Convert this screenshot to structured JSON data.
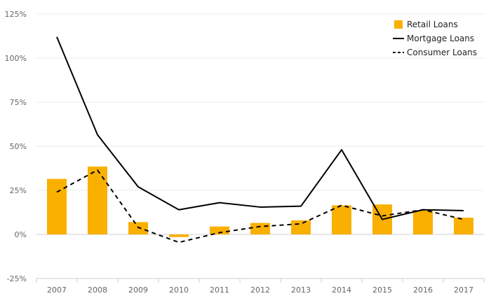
{
  "chart_data": {
    "type": "bar",
    "categories": [
      "2007",
      "2008",
      "2009",
      "2010",
      "2011",
      "2012",
      "2013",
      "2014",
      "2015",
      "2016",
      "2017"
    ],
    "ylim": [
      -25,
      125
    ],
    "yticks": [
      -25,
      0,
      25,
      50,
      75,
      100,
      125
    ],
    "ytick_labels": [
      "-25%",
      "0%",
      "25%",
      "50%",
      "75%",
      "100%",
      "125%"
    ],
    "grid": true,
    "legend_position": "top-right",
    "series": [
      {
        "name": "Retail Loans",
        "type": "bar",
        "color": "#F9B000",
        "values": [
          31.5,
          38.5,
          7,
          -1.5,
          4.5,
          6.5,
          8,
          16.5,
          17,
          13.5,
          9.5
        ]
      },
      {
        "name": "Mortgage Loans",
        "type": "line",
        "style": "solid",
        "color": "#000000",
        "values": [
          112,
          56.5,
          27,
          14,
          18,
          15.5,
          16,
          48,
          8.5,
          14,
          13.5
        ]
      },
      {
        "name": "Consumer Loans",
        "type": "line",
        "style": "dashed",
        "color": "#000000",
        "values": [
          24,
          36.5,
          4,
          -4.5,
          1,
          4.5,
          6,
          16.5,
          10.5,
          14,
          8.5
        ]
      }
    ]
  }
}
